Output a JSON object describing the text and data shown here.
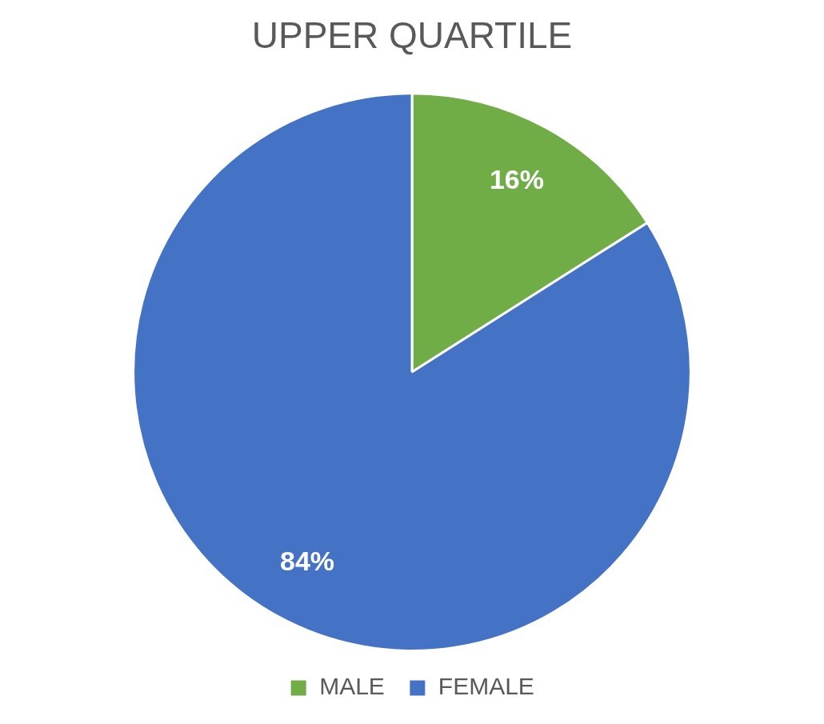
{
  "chart_data": {
    "type": "pie",
    "title": "UPPER QUARTILE",
    "categories": [
      "MALE",
      "FEMALE"
    ],
    "values": [
      16,
      84
    ],
    "colors": [
      "#70ad47",
      "#4472c4"
    ],
    "value_labels": [
      "16%",
      "84%"
    ],
    "legend": "bottom"
  }
}
